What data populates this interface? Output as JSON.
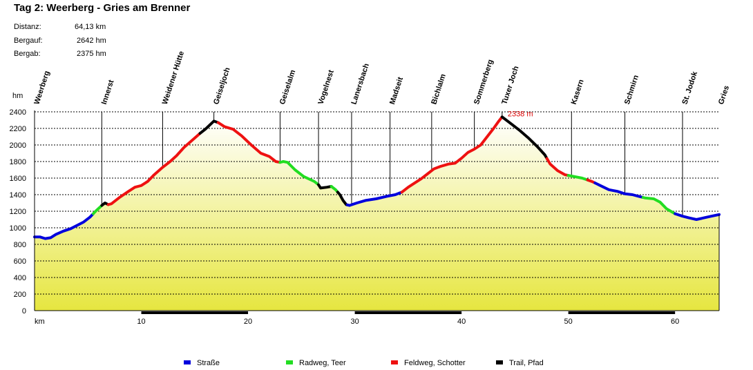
{
  "title": "Tag 2: Weerberg - Gries am Brenner",
  "stats": [
    {
      "label": "Distanz:",
      "value": "64,13 km"
    },
    {
      "label": "Bergauf:",
      "value": "2642 hm"
    },
    {
      "label": "Bergab:",
      "value": "2375 hm"
    }
  ],
  "chart_data": {
    "type": "area",
    "xlabel": "km",
    "ylabel": "hm",
    "xlim": [
      0,
      64.13
    ],
    "ylim": [
      0,
      2400
    ],
    "x_ticks": [
      10,
      20,
      30,
      40,
      50,
      60
    ],
    "y_ticks": [
      0,
      200,
      400,
      600,
      800,
      1000,
      1200,
      1400,
      1600,
      1800,
      2000,
      2200,
      2400
    ],
    "grid": true,
    "colors": {
      "road": "#0000dd",
      "bikepath": "#22dd22",
      "gravel": "#ee1111",
      "trail": "#000000",
      "peak_label": "#dd0000"
    },
    "peak_annotation": {
      "x": 43.8,
      "y": 2338,
      "text": "2338 m"
    },
    "waypoints": [
      {
        "name": "Weerberg",
        "km": 0
      },
      {
        "name": "Innerst",
        "km": 6.3
      },
      {
        "name": "Weidener Hütte",
        "km": 12
      },
      {
        "name": "Geiseljoch",
        "km": 16.8
      },
      {
        "name": "Geiselalm",
        "km": 23
      },
      {
        "name": "Vogelnest",
        "km": 26.6
      },
      {
        "name": "Lanersbach",
        "km": 29.7
      },
      {
        "name": "Madseit",
        "km": 33.3
      },
      {
        "name": "Bichlalm",
        "km": 37.2
      },
      {
        "name": "Sommerberg",
        "km": 41.2
      },
      {
        "name": "Tuxer Joch",
        "km": 43.8
      },
      {
        "name": "Kasern",
        "km": 50.3
      },
      {
        "name": "Schmirn",
        "km": 55.3
      },
      {
        "name": "St. Jodok",
        "km": 60.7
      },
      {
        "name": "Gries",
        "km": 64.1
      }
    ],
    "legend": [
      {
        "key": "road",
        "label": "Straße"
      },
      {
        "key": "bikepath",
        "label": "Radweg, Teer"
      },
      {
        "key": "gravel",
        "label": "Feldweg, Schotter"
      },
      {
        "key": "trail",
        "label": "Trail, Pfad"
      }
    ],
    "profile": [
      [
        0,
        890
      ],
      [
        0.5,
        890
      ],
      [
        1.0,
        870
      ],
      [
        1.5,
        880
      ],
      [
        2.0,
        920
      ],
      [
        2.7,
        960
      ],
      [
        3.4,
        990
      ],
      [
        4.0,
        1030
      ],
      [
        4.6,
        1070
      ],
      [
        5.2,
        1130
      ],
      [
        5.8,
        1210
      ],
      [
        6.3,
        1270
      ],
      [
        6.6,
        1300
      ],
      [
        6.9,
        1280
      ],
      [
        7.2,
        1290
      ],
      [
        8.0,
        1370
      ],
      [
        8.8,
        1440
      ],
      [
        9.4,
        1490
      ],
      [
        10.0,
        1510
      ],
      [
        10.6,
        1560
      ],
      [
        11.2,
        1640
      ],
      [
        12.0,
        1730
      ],
      [
        12.7,
        1800
      ],
      [
        13.3,
        1870
      ],
      [
        14.0,
        1970
      ],
      [
        14.8,
        2060
      ],
      [
        15.5,
        2140
      ],
      [
        16.0,
        2190
      ],
      [
        16.8,
        2288
      ],
      [
        17.2,
        2270
      ],
      [
        17.8,
        2220
      ],
      [
        18.6,
        2190
      ],
      [
        19.4,
        2110
      ],
      [
        20.3,
        2000
      ],
      [
        21.2,
        1900
      ],
      [
        22.0,
        1860
      ],
      [
        22.6,
        1800
      ],
      [
        23.0,
        1790
      ],
      [
        23.3,
        1800
      ],
      [
        23.7,
        1790
      ],
      [
        24.4,
        1700
      ],
      [
        25.2,
        1620
      ],
      [
        26.2,
        1560
      ],
      [
        26.6,
        1520
      ],
      [
        26.8,
        1480
      ],
      [
        27.4,
        1490
      ],
      [
        27.8,
        1500
      ],
      [
        28.2,
        1460
      ],
      [
        28.6,
        1400
      ],
      [
        28.9,
        1330
      ],
      [
        29.2,
        1280
      ],
      [
        29.5,
        1270
      ],
      [
        30.2,
        1300
      ],
      [
        31.0,
        1330
      ],
      [
        32.0,
        1350
      ],
      [
        33.0,
        1380
      ],
      [
        33.8,
        1400
      ],
      [
        34.4,
        1430
      ],
      [
        35.0,
        1490
      ],
      [
        35.6,
        1540
      ],
      [
        36.2,
        1590
      ],
      [
        36.8,
        1650
      ],
      [
        37.4,
        1710
      ],
      [
        38.0,
        1740
      ],
      [
        38.8,
        1770
      ],
      [
        39.4,
        1780
      ],
      [
        40.0,
        1840
      ],
      [
        40.6,
        1910
      ],
      [
        41.2,
        1950
      ],
      [
        41.8,
        2000
      ],
      [
        42.4,
        2100
      ],
      [
        43.0,
        2200
      ],
      [
        43.5,
        2290
      ],
      [
        43.8,
        2338
      ],
      [
        44.6,
        2260
      ],
      [
        45.5,
        2170
      ],
      [
        46.3,
        2080
      ],
      [
        47.1,
        1980
      ],
      [
        47.8,
        1880
      ],
      [
        48.3,
        1770
      ],
      [
        49.0,
        1690
      ],
      [
        49.7,
        1640
      ],
      [
        50.5,
        1620
      ],
      [
        51.3,
        1600
      ],
      [
        52.2,
        1560
      ],
      [
        53.0,
        1510
      ],
      [
        53.8,
        1460
      ],
      [
        54.6,
        1440
      ],
      [
        55.3,
        1410
      ],
      [
        56.0,
        1400
      ],
      [
        56.6,
        1380
      ],
      [
        57.2,
        1360
      ],
      [
        58.0,
        1350
      ],
      [
        58.6,
        1310
      ],
      [
        59.2,
        1230
      ],
      [
        60.0,
        1170
      ],
      [
        60.7,
        1140
      ],
      [
        61.3,
        1120
      ],
      [
        62.0,
        1100
      ],
      [
        62.7,
        1120
      ],
      [
        63.4,
        1140
      ],
      [
        64.13,
        1160
      ]
    ],
    "segments": [
      {
        "from": 0,
        "to": 5.5,
        "type": "road"
      },
      {
        "from": 5.5,
        "to": 6.3,
        "type": "bikepath"
      },
      {
        "from": 6.3,
        "to": 6.9,
        "type": "trail"
      },
      {
        "from": 6.9,
        "to": 15.5,
        "type": "gravel"
      },
      {
        "from": 15.5,
        "to": 17.2,
        "type": "trail"
      },
      {
        "from": 17.2,
        "to": 23.0,
        "type": "gravel"
      },
      {
        "from": 23.0,
        "to": 26.6,
        "type": "bikepath"
      },
      {
        "from": 26.6,
        "to": 27.8,
        "type": "trail"
      },
      {
        "from": 27.8,
        "to": 28.4,
        "type": "bikepath"
      },
      {
        "from": 28.4,
        "to": 29.3,
        "type": "trail"
      },
      {
        "from": 29.3,
        "to": 34.4,
        "type": "road"
      },
      {
        "from": 34.4,
        "to": 43.8,
        "type": "gravel"
      },
      {
        "from": 43.8,
        "to": 48.0,
        "type": "trail"
      },
      {
        "from": 48.0,
        "to": 50.0,
        "type": "gravel"
      },
      {
        "from": 50.0,
        "to": 51.8,
        "type": "bikepath"
      },
      {
        "from": 51.8,
        "to": 52.5,
        "type": "gravel"
      },
      {
        "from": 52.5,
        "to": 57.0,
        "type": "road"
      },
      {
        "from": 57.0,
        "to": 60.0,
        "type": "bikepath"
      },
      {
        "from": 60.0,
        "to": 64.13,
        "type": "road"
      }
    ]
  }
}
